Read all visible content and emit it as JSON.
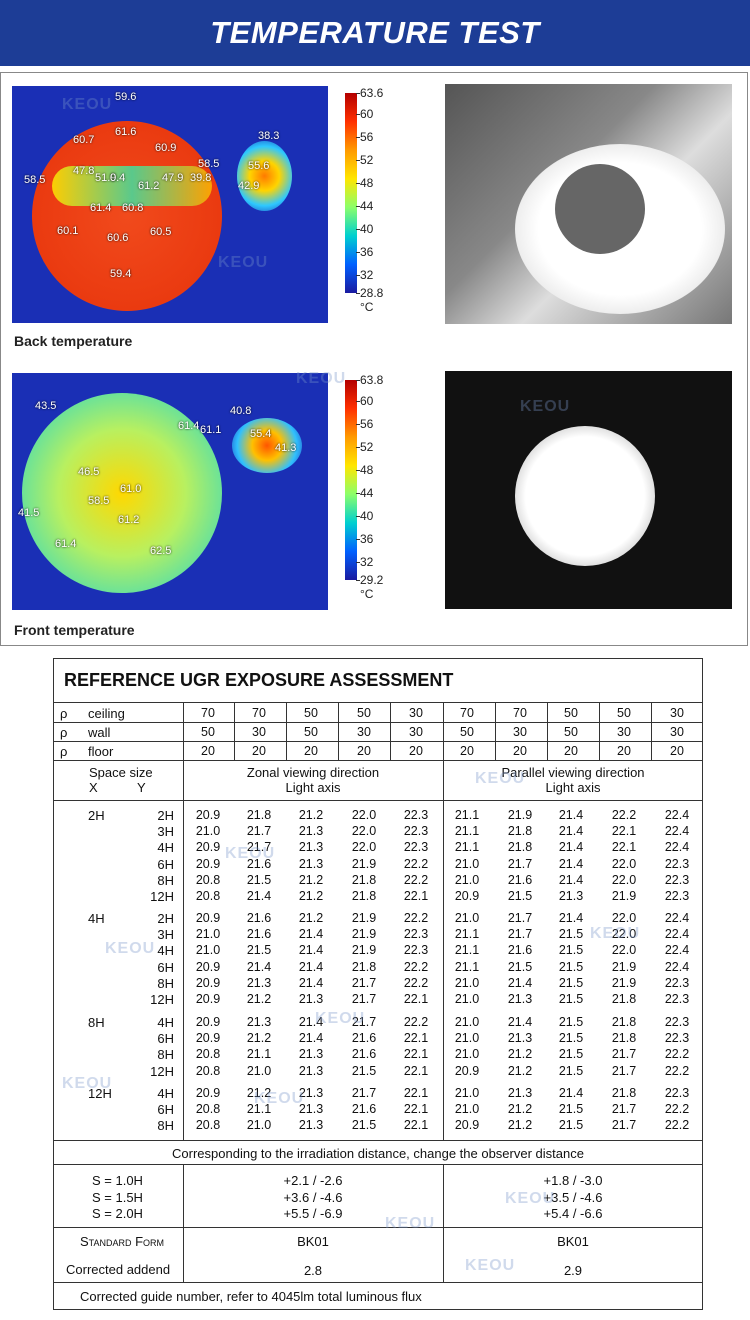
{
  "banner": {
    "title": "TEMPERATURE TEST"
  },
  "back": {
    "caption": "Back temperature",
    "scale": [
      "63.6",
      "60",
      "56",
      "52",
      "48",
      "44",
      "40",
      "36",
      "32",
      "28.8",
      "°C"
    ],
    "labels": [
      "59.6",
      "61.6",
      "60.7",
      "60.9",
      "38.3",
      "58.5",
      "55.6",
      "47.8",
      "51.9",
      "0.4",
      "61.2",
      "47.9",
      "39.8",
      "58.5",
      "42.9",
      "61.4",
      "60.8",
      "60.1",
      "60.6",
      "60.5",
      "59.4"
    ]
  },
  "front": {
    "caption": "Front temperature",
    "scale": [
      "63.8",
      "60",
      "56",
      "52",
      "48",
      "44",
      "40",
      "36",
      "32",
      "29.2",
      "°C"
    ],
    "labels": [
      "43.5",
      "40.8",
      "61.4",
      "61.1",
      "55.4",
      "41.3",
      "46.5",
      "61.0",
      "58.5",
      "61.2",
      "41.5",
      "61.4",
      "62.5"
    ]
  },
  "watermark": "KEOU",
  "ugr": {
    "title": "REFERENCE UGR EXPOSURE ASSESSMENT",
    "rho": "ρ",
    "ceiling_label": "ceiling",
    "wall_label": "wall",
    "floor_label": "floor",
    "ceiling": [
      "70",
      "70",
      "50",
      "50",
      "30",
      "70",
      "70",
      "50",
      "50",
      "30"
    ],
    "wall": [
      "50",
      "30",
      "50",
      "30",
      "30",
      "50",
      "30",
      "50",
      "30",
      "30"
    ],
    "floor": [
      "20",
      "20",
      "20",
      "20",
      "20",
      "20",
      "20",
      "20",
      "20",
      "20"
    ],
    "space_size": "Space size",
    "x_label": "X",
    "y_label": "Y",
    "zonal_title": "Zonal viewing direction",
    "zonal_sub": "Light axis",
    "parallel_title": "Parallel viewing direction",
    "parallel_sub": "Light axis",
    "groups": [
      {
        "x": "2H",
        "rows": [
          {
            "y": "2H",
            "v": [
              "20.9",
              "21.8",
              "21.2",
              "22.0",
              "22.3",
              "21.1",
              "21.9",
              "21.4",
              "22.2",
              "22.4"
            ]
          },
          {
            "y": "3H",
            "v": [
              "21.0",
              "21.7",
              "21.3",
              "22.0",
              "22.3",
              "21.1",
              "21.8",
              "21.4",
              "22.1",
              "22.4"
            ]
          },
          {
            "y": "4H",
            "v": [
              "20.9",
              "21.7",
              "21.3",
              "22.0",
              "22.3",
              "21.1",
              "21.8",
              "21.4",
              "22.1",
              "22.4"
            ]
          },
          {
            "y": "6H",
            "v": [
              "20.9",
              "21.6",
              "21.3",
              "21.9",
              "22.2",
              "21.0",
              "21.7",
              "21.4",
              "22.0",
              "22.3"
            ]
          },
          {
            "y": "8H",
            "v": [
              "20.8",
              "21.5",
              "21.2",
              "21.8",
              "22.2",
              "21.0",
              "21.6",
              "21.4",
              "22.0",
              "22.3"
            ]
          },
          {
            "y": "12H",
            "v": [
              "20.8",
              "21.4",
              "21.2",
              "21.8",
              "22.1",
              "20.9",
              "21.5",
              "21.3",
              "21.9",
              "22.3"
            ]
          }
        ]
      },
      {
        "x": "4H",
        "rows": [
          {
            "y": "2H",
            "v": [
              "20.9",
              "21.6",
              "21.2",
              "21.9",
              "22.2",
              "21.0",
              "21.7",
              "21.4",
              "22.0",
              "22.4"
            ]
          },
          {
            "y": "3H",
            "v": [
              "21.0",
              "21.6",
              "21.4",
              "21.9",
              "22.3",
              "21.1",
              "21.7",
              "21.5",
              "22.0",
              "22.4"
            ]
          },
          {
            "y": "4H",
            "v": [
              "21.0",
              "21.5",
              "21.4",
              "21.9",
              "22.3",
              "21.1",
              "21.6",
              "21.5",
              "22.0",
              "22.4"
            ]
          },
          {
            "y": "6H",
            "v": [
              "20.9",
              "21.4",
              "21.4",
              "21.8",
              "22.2",
              "21.1",
              "21.5",
              "21.5",
              "21.9",
              "22.4"
            ]
          },
          {
            "y": "8H",
            "v": [
              "20.9",
              "21.3",
              "21.4",
              "21.7",
              "22.2",
              "21.0",
              "21.4",
              "21.5",
              "21.9",
              "22.3"
            ]
          },
          {
            "y": "12H",
            "v": [
              "20.9",
              "21.2",
              "21.3",
              "21.7",
              "22.1",
              "21.0",
              "21.3",
              "21.5",
              "21.8",
              "22.3"
            ]
          }
        ]
      },
      {
        "x": "8H",
        "rows": [
          {
            "y": "4H",
            "v": [
              "20.9",
              "21.3",
              "21.4",
              "21.7",
              "22.2",
              "21.0",
              "21.4",
              "21.5",
              "21.8",
              "22.3"
            ]
          },
          {
            "y": "6H",
            "v": [
              "20.9",
              "21.2",
              "21.4",
              "21.6",
              "22.1",
              "21.0",
              "21.3",
              "21.5",
              "21.8",
              "22.3"
            ]
          },
          {
            "y": "8H",
            "v": [
              "20.8",
              "21.1",
              "21.3",
              "21.6",
              "22.1",
              "21.0",
              "21.2",
              "21.5",
              "21.7",
              "22.2"
            ]
          },
          {
            "y": "12H",
            "v": [
              "20.8",
              "21.0",
              "21.3",
              "21.5",
              "22.1",
              "20.9",
              "21.2",
              "21.5",
              "21.7",
              "22.2"
            ]
          }
        ]
      },
      {
        "x": "12H",
        "rows": [
          {
            "y": "4H",
            "v": [
              "20.9",
              "21.2",
              "21.3",
              "21.7",
              "22.1",
              "21.0",
              "21.3",
              "21.4",
              "21.8",
              "22.3"
            ]
          },
          {
            "y": "6H",
            "v": [
              "20.8",
              "21.1",
              "21.3",
              "21.6",
              "22.1",
              "21.0",
              "21.2",
              "21.5",
              "21.7",
              "22.2"
            ]
          },
          {
            "y": "8H",
            "v": [
              "20.8",
              "21.0",
              "21.3",
              "21.5",
              "22.1",
              "20.9",
              "21.2",
              "21.5",
              "21.7",
              "22.2"
            ]
          }
        ]
      }
    ],
    "distance_note": "Corresponding to the irradiation distance, change the observer distance",
    "s_rows": [
      {
        "s": "S = 1.0H",
        "z": "+2.1  /  -2.6",
        "p": "+1.8  /  -3.0"
      },
      {
        "s": "S = 1.5H",
        "z": "+3.6  /  -4.6",
        "p": "+3.5  /  -4.6"
      },
      {
        "s": "S = 2.0H",
        "z": "+5.5  /  -6.9",
        "p": "+5.4  /  -6.6"
      }
    ],
    "standard_form": "Standard Form",
    "standard_z": "BK01",
    "standard_p": "BK01",
    "corrected_addend": "Corrected addend",
    "addend_z": "2.8",
    "addend_p": "2.9",
    "footer": "Corrected guide number, refer to 4045lm total luminous flux"
  }
}
